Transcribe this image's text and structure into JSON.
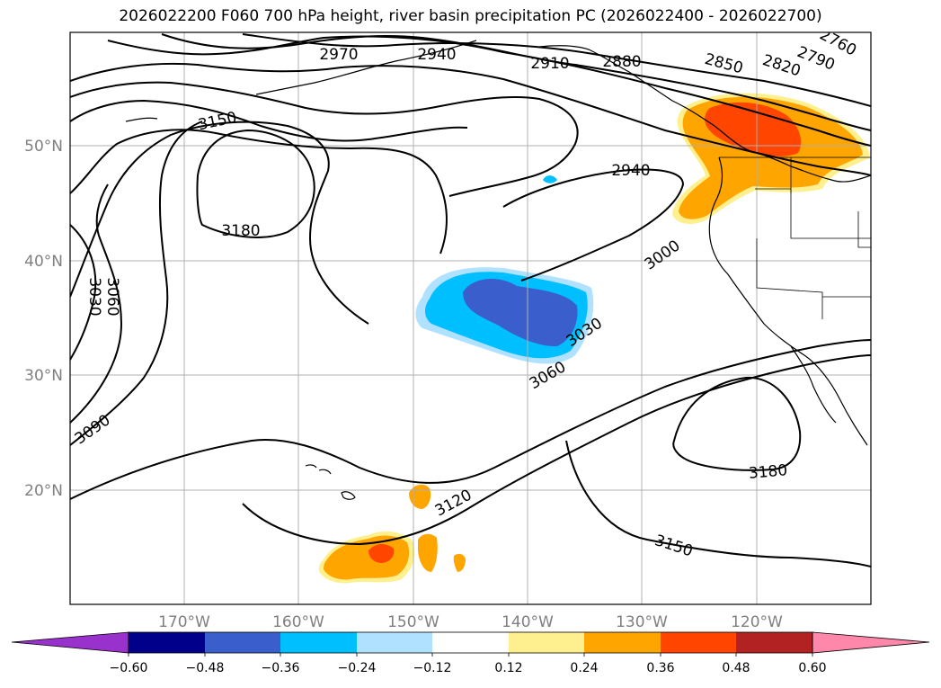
{
  "title": "2026022200 F060 700 hPa height, river basin precipitation PC (2026022400 - 2026022700)",
  "lat_labels": [
    "50°N",
    "40°N",
    "30°N",
    "20°N"
  ],
  "lon_labels": [
    "170°W",
    "160°W",
    "150°W",
    "140°W",
    "130°W",
    "120°W"
  ],
  "contour_labels": [
    "2970",
    "2940",
    "2910",
    "2880",
    "2850",
    "2820",
    "2790",
    "2760",
    "3150",
    "3180",
    "2940",
    "3000",
    "3030",
    "3060",
    "3060",
    "3030",
    "3090",
    "3120",
    "3180",
    "3150"
  ],
  "colorbar": {
    "ticks": [
      "−0.60",
      "−0.48",
      "−0.36",
      "−0.24",
      "−0.12",
      "0.12",
      "0.24",
      "0.36",
      "0.48",
      "0.60"
    ],
    "colors": [
      "#9932cc",
      "#00008b",
      "#3a5fcd",
      "#00bfff",
      "#b0e2ff",
      "#ffffff",
      "#fff08f",
      "#ffa500",
      "#ff4500",
      "#b22222",
      "#ff88aa"
    ]
  },
  "colors": {
    "neg_strong": "#3a5fcd",
    "neg_mid": "#00bfff",
    "neg_weak": "#b0e2ff",
    "pos_weak": "#fff08f",
    "pos_mid": "#ffa500",
    "pos_strong": "#ff4500",
    "grid": "#b0b0b0",
    "contour": "#000000"
  }
}
